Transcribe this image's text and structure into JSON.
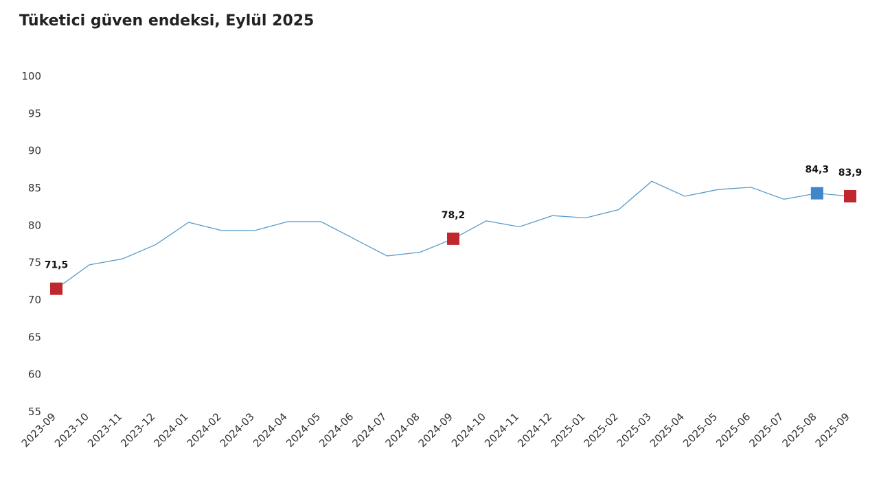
{
  "chart_data": {
    "type": "line",
    "title": "Tüketici güven endeksi, Eylül 2025",
    "xlabel": "",
    "ylabel": "",
    "ylim": [
      55,
      100
    ],
    "yticks": [
      55,
      60,
      65,
      70,
      75,
      80,
      85,
      90,
      95,
      100
    ],
    "grid": false,
    "categories": [
      "2023-09",
      "2023-10",
      "2023-11",
      "2023-12",
      "2024-01",
      "2024-02",
      "2024-03",
      "2024-04",
      "2024-05",
      "2024-06",
      "2024-07",
      "2024-08",
      "2024-09",
      "2024-10",
      "2024-11",
      "2024-12",
      "2025-01",
      "2025-02",
      "2025-03",
      "2025-04",
      "2025-05",
      "2025-06",
      "2025-07",
      "2025-08",
      "2025-09"
    ],
    "series": [
      {
        "values": [
          71.5,
          74.7,
          75.5,
          77.4,
          80.4,
          79.3,
          79.3,
          80.5,
          80.5,
          78.2,
          75.9,
          76.4,
          78.2,
          80.6,
          79.8,
          81.3,
          81.0,
          82.1,
          85.9,
          83.9,
          84.8,
          85.1,
          83.5,
          84.3,
          83.9
        ],
        "color": "#5b9bc8"
      }
    ],
    "highlights": [
      {
        "index": 0,
        "label": "71,5",
        "color": "#c0282d"
      },
      {
        "index": 12,
        "label": "78,2",
        "color": "#c0282d"
      },
      {
        "index": 23,
        "label": "84,3",
        "color": "#3f87c9"
      },
      {
        "index": 24,
        "label": "83,9",
        "color": "#c0282d"
      }
    ]
  }
}
